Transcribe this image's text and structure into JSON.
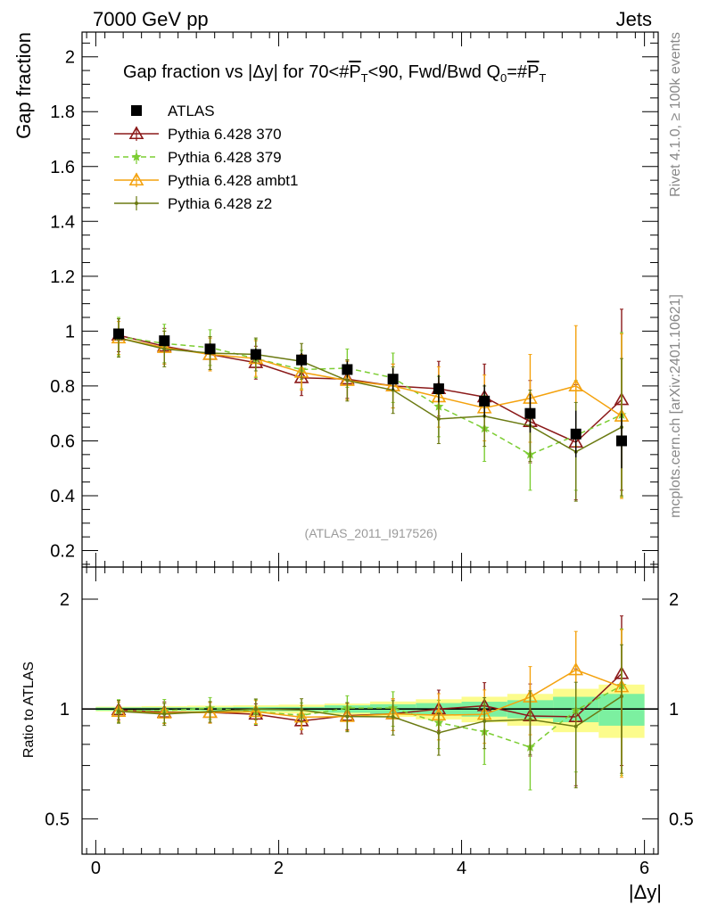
{
  "header": {
    "energy": "7000 GeV pp",
    "process": "Jets"
  },
  "side_labels": {
    "rivet": "Rivet 4.1.0, ≥ 100k events",
    "mcplots": "mcplots.cern.ch [arXiv:2401.10621]"
  },
  "analysis_tag": "(ATLAS_2011_I917526)",
  "colors": {
    "atlas": "#000000",
    "p370": "#8b1a1a",
    "p379": "#7ccd32",
    "ambt1": "#f4a20e",
    "z2": "#6b7a12",
    "band_inner": "#7cf0a0",
    "band_outer": "#fcfc8c"
  },
  "chart_data": {
    "type": "scatter",
    "title": "Gap fraction vs |Δy| for 70<#P̅T<90, Fwd/Bwd Q0=#P̅T",
    "title_parts": {
      "prefix": "Gap fraction vs |Δy| for 70<#",
      "p1": "P",
      "t1": "T",
      "mid": "<90, Fwd/Bwd Q",
      "q0": "0",
      "eq": "=#",
      "p2": "P",
      "t2": "T"
    },
    "xlabel": "|Δy|",
    "ylabel": "Gap fraction",
    "ratio_ylabel": "Ratio to ATLAS",
    "xlim": [
      -0.15,
      6.15
    ],
    "ylim": [
      0.14,
      2.09
    ],
    "ratio_ylim": [
      0.4,
      2.45
    ],
    "x_ticks": [
      0,
      2,
      4,
      6
    ],
    "x_tick_labels": [
      "0",
      "2",
      "4",
      "6"
    ],
    "y_ticks": [
      0.2,
      0.4,
      0.6,
      0.8,
      1.0,
      1.2,
      1.4,
      1.6,
      1.8,
      2.0
    ],
    "y_tick_labels": [
      "0.2",
      "0.4",
      "0.6",
      "0.8",
      "1",
      "1.2",
      "1.4",
      "1.6",
      "1.8",
      "2"
    ],
    "ratio_ticks": [
      0.5,
      1,
      2
    ],
    "ratio_tick_labels": [
      "0.5",
      "1",
      "2"
    ],
    "x": [
      0.25,
      0.75,
      1.25,
      1.75,
      2.25,
      2.75,
      3.25,
      3.75,
      4.25,
      4.75,
      5.25,
      5.75
    ],
    "x_low": [
      0,
      0.5,
      1.0,
      1.5,
      2.0,
      2.5,
      3.0,
      3.5,
      4.0,
      4.5,
      5.0,
      5.5
    ],
    "x_high": [
      0.5,
      1.0,
      1.5,
      2.0,
      2.5,
      3.0,
      3.5,
      4.0,
      4.5,
      5.0,
      5.5,
      6.0
    ],
    "data": {
      "name": "ATLAS",
      "values": [
        0.99,
        0.965,
        0.935,
        0.915,
        0.895,
        0.86,
        0.825,
        0.79,
        0.745,
        0.7,
        0.625,
        0.6
      ],
      "band_inner": [
        0.01,
        0.01,
        0.01,
        0.012,
        0.012,
        0.02,
        0.025,
        0.03,
        0.035,
        0.04,
        0.05,
        0.06
      ],
      "band_outer": [
        0.015,
        0.018,
        0.02,
        0.022,
        0.025,
        0.03,
        0.04,
        0.05,
        0.06,
        0.07,
        0.085,
        0.1
      ]
    },
    "series": [
      {
        "name": "Pythia 6.428 370",
        "color": "#8b1a1a",
        "marker": "triangle-open",
        "dash": "",
        "values": [
          0.985,
          0.945,
          0.915,
          0.885,
          0.83,
          0.825,
          0.8,
          0.79,
          0.76,
          0.67,
          0.595,
          0.75
        ],
        "errors": [
          0.06,
          0.065,
          0.06,
          0.06,
          0.065,
          0.07,
          0.08,
          0.1,
          0.12,
          0.15,
          0.21,
          0.33
        ]
      },
      {
        "name": "Pythia 6.428 379",
        "color": "#7ccd32",
        "marker": "star",
        "dash": "6,4",
        "values": [
          0.98,
          0.955,
          0.94,
          0.9,
          0.86,
          0.865,
          0.83,
          0.725,
          0.645,
          0.55,
          0.62,
          0.695
        ],
        "errors": [
          0.07,
          0.07,
          0.065,
          0.07,
          0.07,
          0.07,
          0.09,
          0.11,
          0.12,
          0.13,
          0.2,
          0.3
        ]
      },
      {
        "name": "Pythia 6.428 ambt1",
        "color": "#f4a20e",
        "marker": "triangle-open",
        "dash": "",
        "values": [
          0.975,
          0.94,
          0.915,
          0.9,
          0.85,
          0.82,
          0.8,
          0.76,
          0.72,
          0.755,
          0.8,
          0.69
        ],
        "errors": [
          0.06,
          0.06,
          0.06,
          0.065,
          0.065,
          0.07,
          0.08,
          0.11,
          0.12,
          0.16,
          0.22,
          0.3
        ]
      },
      {
        "name": "Pythia 6.428 z2",
        "color": "#6b7a12",
        "marker": "dot",
        "dash": "",
        "values": [
          0.975,
          0.935,
          0.92,
          0.915,
          0.89,
          0.82,
          0.785,
          0.68,
          0.69,
          0.655,
          0.56,
          0.65
        ],
        "errors": [
          0.07,
          0.065,
          0.06,
          0.06,
          0.065,
          0.075,
          0.085,
          0.09,
          0.11,
          0.13,
          0.18,
          0.25
        ]
      }
    ]
  }
}
